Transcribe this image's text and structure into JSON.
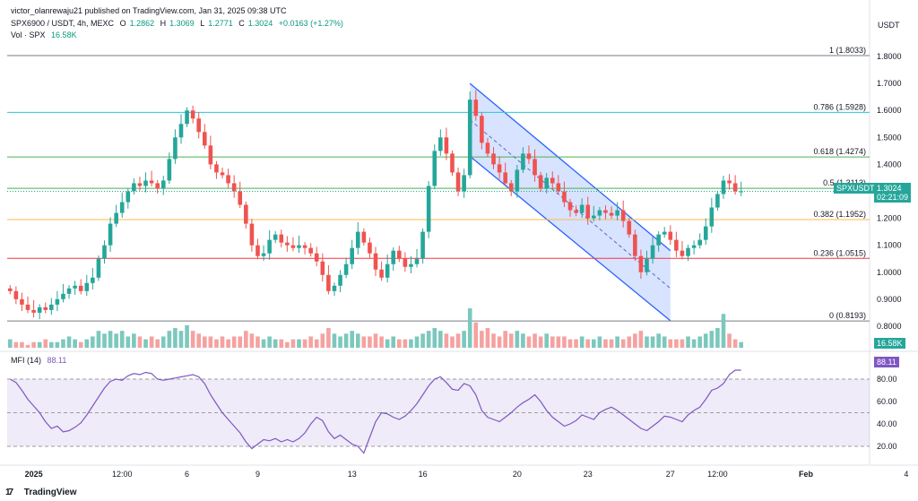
{
  "header": {
    "publisher": "victor_olanrewaju21 published on TradingView.com, Jan 31, 2025 09:38 UTC",
    "symbol": "SPX6900 / USDT, 4h, MEXC",
    "o_label": "O",
    "o_value": "1.2862",
    "h_label": "H",
    "h_value": "1.3069",
    "l_label": "L",
    "l_value": "1.2771",
    "c_label": "C",
    "c_value": "1.3024",
    "change": "+0.0163 (+1.27%)",
    "vol_label": "Vol · SPX",
    "vol_value": "16.58K",
    "currency": "USDT"
  },
  "price_tags": {
    "symbol_tag": "SPXUSDT",
    "last_price": "1.3024",
    "countdown": "02:21:09",
    "volume": "16.58K",
    "mfi": "88.11"
  },
  "mfi_header": {
    "label": "MFI (14)",
    "value": "88.11"
  },
  "footer": {
    "brand": "TradingView"
  },
  "colors": {
    "up": "#26a69a",
    "down": "#ef5350",
    "vol_up": "#7cc8bd",
    "vol_down": "#f4a2a1",
    "channel": "#2962ff",
    "mfi_line": "#7e57c2"
  },
  "chart_data": [
    {
      "type": "candlestick",
      "title": "SPX6900 / USDT, 4h, MEXC",
      "y_axis_side": "right",
      "ylim": [
        0.72,
        1.86
      ],
      "y_ticks": [
        "1.8000",
        "1.7000",
        "1.6000",
        "1.5000",
        "1.4000",
        "1.3000",
        "1.2000",
        "1.1000",
        "1.0000",
        "0.9000",
        "0.8000"
      ],
      "x_ticks": [
        "2025",
        "12:00",
        "6",
        "9",
        "13",
        "16",
        "20",
        "23",
        "27",
        "12:00",
        "Feb",
        "4"
      ],
      "close_series": [
        0.93,
        0.9,
        0.88,
        0.86,
        0.85,
        0.87,
        0.86,
        0.88,
        0.9,
        0.92,
        0.94,
        0.95,
        0.93,
        0.96,
        0.98,
        1.05,
        1.1,
        1.18,
        1.22,
        1.26,
        1.3,
        1.33,
        1.32,
        1.34,
        1.33,
        1.31,
        1.34,
        1.42,
        1.5,
        1.55,
        1.6,
        1.57,
        1.52,
        1.47,
        1.4,
        1.37,
        1.36,
        1.33,
        1.3,
        1.25,
        1.18,
        1.1,
        1.06,
        1.07,
        1.12,
        1.14,
        1.11,
        1.1,
        1.09,
        1.1,
        1.09,
        1.07,
        1.04,
        0.99,
        0.93,
        0.95,
        0.99,
        1.03,
        1.09,
        1.15,
        1.11,
        1.07,
        1.01,
        0.98,
        1.03,
        1.08,
        1.05,
        1.02,
        1.03,
        1.05,
        1.15,
        1.32,
        1.45,
        1.5,
        1.44,
        1.37,
        1.3,
        1.36,
        1.64,
        1.58,
        1.48,
        1.44,
        1.4,
        1.37,
        1.33,
        1.3,
        1.38,
        1.44,
        1.42,
        1.36,
        1.31,
        1.35,
        1.33,
        1.3,
        1.26,
        1.23,
        1.22,
        1.25,
        1.2,
        1.21,
        1.23,
        1.22,
        1.21,
        1.23,
        1.19,
        1.14,
        1.06,
        1.0,
        1.05,
        1.1,
        1.14,
        1.15,
        1.12,
        1.08,
        1.06,
        1.09,
        1.1,
        1.12,
        1.17,
        1.24,
        1.29,
        1.34,
        1.33,
        1.3,
        1.3
      ],
      "volume_series": [
        3,
        2,
        2,
        1,
        2,
        2,
        3,
        2,
        2,
        3,
        4,
        3,
        2,
        3,
        4,
        6,
        5,
        6,
        5,
        6,
        4,
        5,
        4,
        3,
        4,
        3,
        4,
        6,
        7,
        6,
        8,
        6,
        5,
        4,
        4,
        3,
        4,
        3,
        4,
        4,
        6,
        5,
        4,
        3,
        4,
        3,
        3,
        2,
        3,
        3,
        3,
        4,
        3,
        5,
        7,
        5,
        4,
        5,
        6,
        5,
        4,
        4,
        5,
        4,
        3,
        4,
        3,
        3,
        3,
        4,
        5,
        6,
        7,
        6,
        5,
        4,
        5,
        6,
        14,
        9,
        6,
        7,
        5,
        4,
        6,
        5,
        6,
        5,
        4,
        5,
        4,
        5,
        4,
        4,
        4,
        3,
        3,
        4,
        3,
        3,
        4,
        3,
        3,
        4,
        3,
        4,
        5,
        6,
        4,
        4,
        5,
        4,
        3,
        3,
        3,
        4,
        3,
        4,
        5,
        6,
        7,
        12,
        5,
        3,
        2
      ],
      "fib_levels": [
        {
          "label": "1 (1.8033)",
          "value": 1.8033,
          "color": "#787b86"
        },
        {
          "label": "0.786 (1.5928)",
          "value": 1.5928,
          "color": "#26c6da"
        },
        {
          "label": "0.618 (1.4274)",
          "value": 1.4274,
          "color": "#4caf50"
        },
        {
          "label": "0.5 (1.3113)",
          "value": 1.3113,
          "color": "#4caf50"
        },
        {
          "label": "0.382 (1.1952)",
          "value": 1.1952,
          "color": "#ffb74d"
        },
        {
          "label": "0.236 (1.0515)",
          "value": 1.0515,
          "color": "#f23645"
        },
        {
          "label": "0 (0.8193)",
          "value": 0.8193,
          "color": "#787b86"
        }
      ],
      "channel": {
        "upper_start": 1.7,
        "upper_end": 1.08,
        "lower_start": 1.43,
        "lower_end": 0.82,
        "mid_end": 0.94,
        "start_index": 78,
        "end_index": 112
      }
    },
    {
      "type": "line",
      "title": "MFI (14)",
      "ylim": [
        12,
        92
      ],
      "y_ticks": [
        "80.00",
        "60.00",
        "40.00",
        "20.00"
      ],
      "band_upper": 80,
      "band_mid": 50,
      "band_lower": 20,
      "values": [
        80,
        77,
        70,
        62,
        56,
        50,
        42,
        36,
        38,
        33,
        34,
        37,
        41,
        48,
        56,
        64,
        72,
        78,
        80,
        79,
        83,
        85,
        84,
        86,
        85,
        80,
        79,
        80,
        81,
        82,
        83,
        84,
        82,
        76,
        66,
        58,
        50,
        44,
        38,
        32,
        24,
        18,
        22,
        26,
        25,
        27,
        24,
        26,
        24,
        27,
        32,
        40,
        46,
        43,
        33,
        27,
        30,
        26,
        22,
        20,
        14,
        28,
        42,
        50,
        49,
        46,
        44,
        47,
        52,
        58,
        66,
        74,
        80,
        82,
        77,
        71,
        70,
        76,
        74,
        66,
        52,
        46,
        44,
        42,
        46,
        50,
        55,
        59,
        62,
        66,
        60,
        52,
        46,
        42,
        38,
        40,
        43,
        48,
        46,
        44,
        50,
        53,
        55,
        52,
        48,
        44,
        40,
        36,
        34,
        38,
        42,
        47,
        46,
        44,
        42,
        48,
        52,
        55,
        62,
        70,
        72,
        76,
        84,
        88,
        88
      ]
    }
  ]
}
